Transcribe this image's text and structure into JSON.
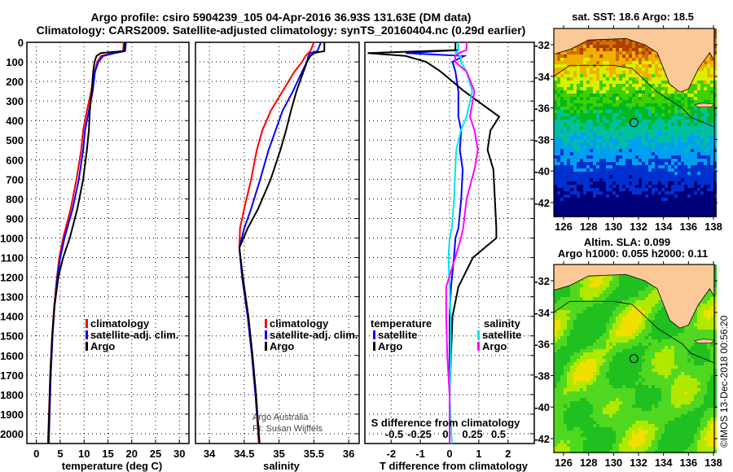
{
  "title_line1": "Argo profile: csiro 5904239_105 04-Apr-2016 36.93S 131.63E (DM data)",
  "title_line2": "Climatology: CARS2009. Satellite-adjusted climatology: synTS_20160404.nc (0.29d earlier)",
  "colors": {
    "climatology": "#ff0000",
    "satellite": "#0000ff",
    "argo": "#000000",
    "sal_satellite": "#00e5ee",
    "sal_argo": "#ff00ff"
  },
  "credit_line1": "Argo Australia",
  "credit_line2": "PI: Susan Wijffels",
  "timestamp": "©IMOS 13-Dec-2018 00:56:20",
  "chart_data": [
    {
      "type": "line",
      "id": "temperature",
      "xlabel": "temperature (deg C)",
      "ylabel": "depth",
      "xlim": [
        -2,
        32
      ],
      "ylim": [
        2050,
        0
      ],
      "xticks": [
        "0",
        "5",
        "10",
        "15",
        "20",
        "25",
        "30"
      ],
      "yticks": [
        "0",
        "100",
        "200",
        "300",
        "400",
        "500",
        "600",
        "700",
        "800",
        "900",
        "1000",
        "1100",
        "1200",
        "1300",
        "1400",
        "1500",
        "1600",
        "1700",
        "1800",
        "1900",
        "2000"
      ],
      "depth": [
        0,
        45,
        55,
        70,
        100,
        150,
        250,
        350,
        450,
        550,
        700,
        850,
        1000,
        1100,
        1200,
        1350,
        1500,
        1700,
        2050
      ],
      "legend": [
        "climatology",
        "satellite-adj. clim.",
        "Argo"
      ],
      "series": [
        {
          "name": "climatology",
          "color": "#ff0000",
          "values": [
            18.3,
            18.2,
            16,
            13.5,
            12.8,
            12.2,
            11.5,
            10.6,
            9.8,
            9.4,
            8.4,
            7.2,
            5.6,
            4.8,
            4.3,
            3.7,
            3.3,
            2.9,
            2.4
          ]
        },
        {
          "name": "satellite-adj. clim.",
          "color": "#0000ff",
          "values": [
            18.8,
            18.6,
            16.5,
            14,
            13,
            12.3,
            11.8,
            11,
            10.2,
            9.8,
            8.9,
            7.6,
            5.9,
            5,
            4.4,
            3.8,
            3.4,
            3,
            2.6
          ]
        },
        {
          "name": "Argo",
          "color": "#000000",
          "values": [
            18.5,
            18.4,
            13.5,
            12.6,
            12.2,
            11.9,
            11.6,
            11.2,
            11,
            10.6,
            9.8,
            8.6,
            7,
            5.6,
            4.6,
            3.8,
            3.3,
            2.9,
            2.5
          ]
        }
      ]
    },
    {
      "type": "line",
      "id": "salinity",
      "xlabel": "salinity",
      "xlim": [
        33.8,
        36.15
      ],
      "ylim": [
        2050,
        0
      ],
      "xticks": [
        "34",
        "34.5",
        "35",
        "35.5",
        "36"
      ],
      "depth": [
        0,
        45,
        55,
        70,
        100,
        150,
        250,
        350,
        450,
        550,
        700,
        850,
        950,
        1050,
        1200,
        1400,
        1600,
        1800,
        2050
      ],
      "legend": [
        "climatology",
        "satellite-adj. clim.",
        "Argo"
      ],
      "series": [
        {
          "name": "climatology",
          "color": "#ff0000",
          "values": [
            35.5,
            35.45,
            35.42,
            35.38,
            35.33,
            35.22,
            35.05,
            34.88,
            34.76,
            34.68,
            34.6,
            34.5,
            34.44,
            34.43,
            34.47,
            34.55,
            34.61,
            34.66,
            34.71
          ]
        },
        {
          "name": "satellite-adj. clim.",
          "color": "#0000ff",
          "values": [
            35.6,
            35.55,
            35.45,
            35.42,
            35.4,
            35.33,
            35.2,
            35.05,
            34.95,
            34.85,
            34.73,
            34.6,
            34.5,
            34.43,
            34.47,
            34.55,
            34.61,
            34.66,
            34.72
          ]
        },
        {
          "name": "Argo",
          "color": "#000000",
          "values": [
            35.65,
            35.65,
            35.5,
            35.45,
            35.4,
            35.35,
            35.25,
            35.17,
            35.1,
            35.02,
            34.88,
            34.7,
            34.55,
            34.43,
            34.48,
            34.56,
            34.62,
            34.67,
            34.72
          ]
        }
      ]
    },
    {
      "type": "line",
      "id": "difference",
      "xlabel": "T difference from climatology",
      "xlabel2": "S difference from climatology",
      "xlim": [
        -2.9,
        2.9
      ],
      "ylim": [
        2050,
        0
      ],
      "xticks": [
        "-2",
        "-1",
        "0",
        "1",
        "2"
      ],
      "xticks2": [
        "-0.5",
        "-0.25",
        "0",
        "0.25",
        "0.5"
      ],
      "legend_left_title": "temperature",
      "legend_right_title": "salinity",
      "legend": {
        "t_sat": "satellite",
        "t_argo": "Argo",
        "s_sat": "satellite",
        "s_argo": "Argo"
      },
      "depth": [
        0,
        40,
        55,
        70,
        100,
        150,
        250,
        380,
        450,
        550,
        650,
        800,
        950,
        1000,
        1100,
        1250,
        1400,
        1600,
        1800,
        2050
      ],
      "series": [
        {
          "name": "T satellite",
          "color": "#0000ff",
          "units": "T",
          "values": [
            0.3,
            0.3,
            -1.5,
            0.5,
            0.1,
            0.2,
            0.3,
            0.3,
            0.4,
            0.35,
            0.45,
            0.4,
            0.3,
            0.2,
            0.15,
            0.05,
            0,
            0,
            0,
            0
          ]
        },
        {
          "name": "T Argo",
          "color": "#000000",
          "units": "T",
          "values": [
            0.2,
            0.2,
            -2.8,
            -1.5,
            -0.8,
            -0.3,
            0.5,
            1.7,
            1.4,
            1.3,
            1.5,
            1.55,
            1.6,
            1.6,
            0.8,
            0.3,
            0.1,
            0.05,
            0,
            0
          ]
        },
        {
          "name": "S satellite",
          "color": "#00e5ee",
          "units": "S",
          "values": [
            0.08,
            0.08,
            0.05,
            0.1,
            0.1,
            0.15,
            0.2,
            0.15,
            0.1,
            0.06,
            0.05,
            0.04,
            0.02,
            0,
            -0.01,
            0,
            0.01,
            0.01,
            0,
            0.02
          ]
        },
        {
          "name": "S Argo",
          "color": "#ff00ff",
          "units": "S",
          "values": [
            0.15,
            0.15,
            0.08,
            0.05,
            0.05,
            0.15,
            0.22,
            0.18,
            0.22,
            0.25,
            0.22,
            0.15,
            0.12,
            0.1,
            0.05,
            -0.03,
            -0.03,
            -0.02,
            0,
            0
          ]
        }
      ]
    }
  ],
  "maps": [
    {
      "id": "sst",
      "title": "sat. SST: 18.6 Argo: 18.5",
      "title2": "",
      "lat_ticks": [
        "-32",
        "-34",
        "-36",
        "-38",
        "-40",
        "-42"
      ],
      "lon_ticks": [
        "126",
        "128",
        "130",
        "132",
        "134",
        "136",
        "138"
      ],
      "profile_lon": 131.63,
      "profile_lat": -36.93
    },
    {
      "id": "sla",
      "title": "Altim. SLA: 0.099",
      "title2": "Argo h1000: 0.055 h2000: 0.11",
      "lat_ticks": [
        "-32",
        "-34",
        "-36",
        "-38",
        "-40",
        "-42"
      ],
      "lon_ticks": [
        "126",
        "128",
        "130",
        "132",
        "134",
        "136",
        "138"
      ],
      "profile_lon": 131.63,
      "profile_lat": -36.93
    }
  ]
}
